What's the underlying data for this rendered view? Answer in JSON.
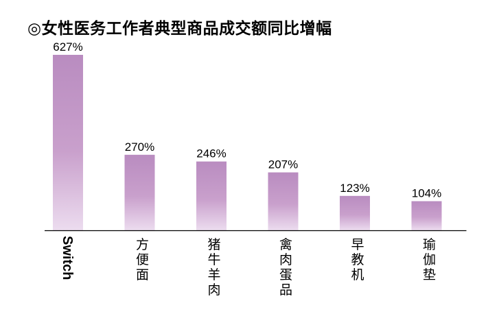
{
  "chart_data": {
    "type": "bar",
    "title": "◎女性医务工作者典型商品成交额同比增幅",
    "categories": [
      "Switch",
      "方便面",
      "猪牛羊肉",
      "禽肉蛋品",
      "早教机",
      "瑜伽垫"
    ],
    "values": [
      627,
      270,
      246,
      207,
      123,
      104
    ],
    "value_labels": [
      "627%",
      "270%",
      "246%",
      "207%",
      "123%",
      "104%"
    ],
    "unit": "%",
    "xlabel": "",
    "ylabel": "",
    "ylim": [
      0,
      627
    ],
    "grid": false,
    "legend": "none",
    "colors": {
      "bar_top": "#b98cc0",
      "bar_bottom": "#ecdcef",
      "axis": "#000000"
    }
  }
}
